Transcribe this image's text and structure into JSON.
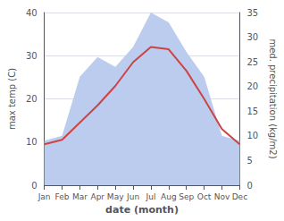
{
  "chart_data": {
    "type": "line",
    "xlabel": "date (month)",
    "ylabel": "max temp (C)",
    "y2label": "med. precipitation (kg/m2)",
    "categories": [
      "Jan",
      "Feb",
      "Mar",
      "Apr",
      "May",
      "Jun",
      "Jul",
      "Aug",
      "Sep",
      "Oct",
      "Nov",
      "Dec"
    ],
    "series": [
      {
        "type": "area",
        "color": "#bbccee",
        "axis": "y2",
        "values": [
          9,
          10,
          22,
          26,
          24,
          28,
          35,
          33,
          27,
          22,
          10,
          9
        ]
      },
      {
        "type": "line",
        "color": "#cc4444",
        "values": [
          9.5,
          10.5,
          14.5,
          18.5,
          23.0,
          28.5,
          32.0,
          31.5,
          26.5,
          20.0,
          13.0,
          9.5
        ]
      }
    ],
    "ylim": [
      0,
      40
    ],
    "yticks": [
      0,
      10,
      20,
      30,
      40
    ],
    "y2lim": [
      0,
      35
    ],
    "y2ticks": [
      0,
      5,
      10,
      15,
      20,
      25,
      30,
      35
    ],
    "grid": true
  }
}
